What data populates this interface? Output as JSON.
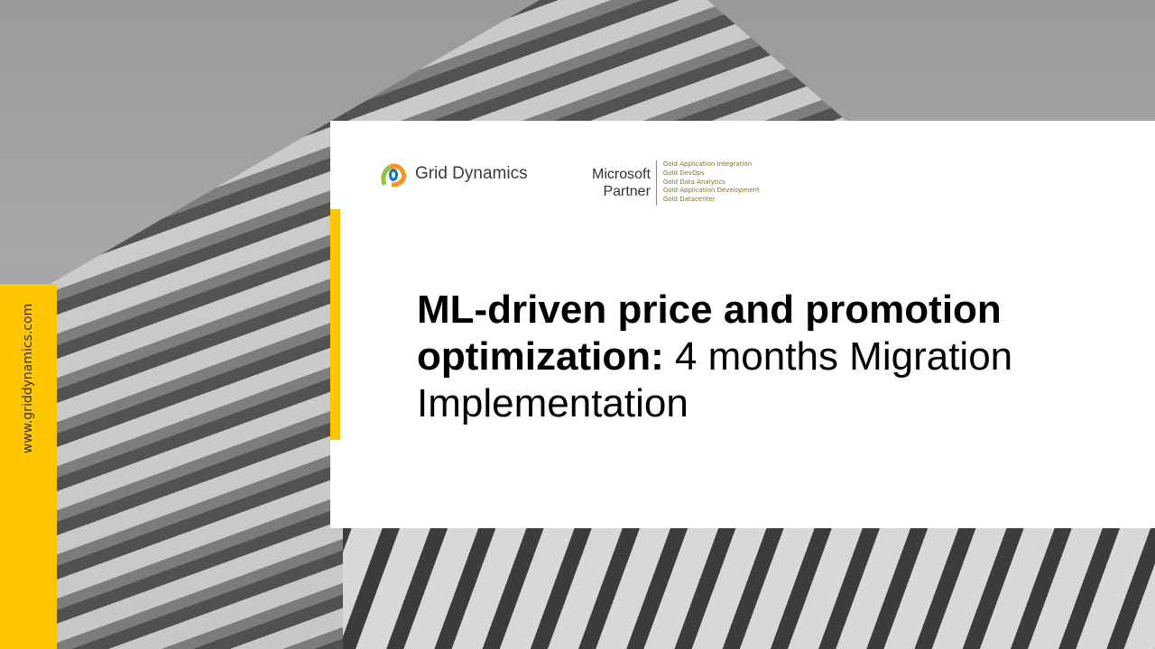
{
  "sidebar": {
    "website": "www.griddynamics.com"
  },
  "logo": {
    "company": "Grid Dynamics"
  },
  "partner": {
    "name_line1": "Microsoft",
    "name_line2": "Partner",
    "competencies": [
      "Gold Application Integration",
      "Gold DevOps",
      "Gold Data Analytics",
      "Gold Application Development",
      "Gold Datacenter"
    ]
  },
  "title": {
    "bold": "ML-driven price and promotion optimization:",
    "regular": " 4 months Migration Implementation"
  },
  "colors": {
    "accent": "#ffc600",
    "background": "#ffffff"
  }
}
